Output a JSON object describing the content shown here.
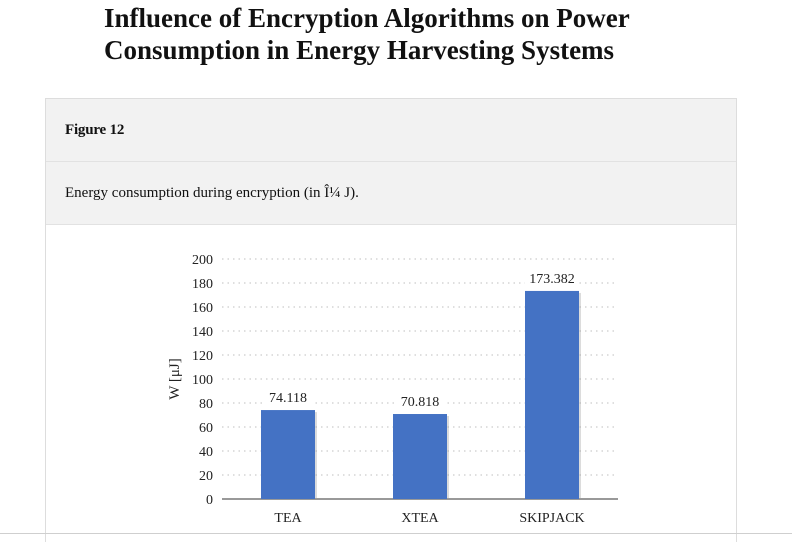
{
  "page": {
    "title": "Influence of Encryption Algorithms on Power Consumption in Energy Harvesting Systems"
  },
  "figure": {
    "label": "Figure 12",
    "caption": "Energy consumption during encryption (in Î¼ J)."
  },
  "colors": {
    "bar": "#4472c4",
    "panel_bg": "#f2f2f2",
    "grid": "#bfbfbf"
  },
  "chart_data": {
    "type": "bar",
    "title": "",
    "xlabel": "",
    "ylabel": "W [μJ]",
    "categories": [
      "TEA",
      "XTEA",
      "SKIPJACK"
    ],
    "values": [
      74.118,
      70.818,
      173.382
    ],
    "value_labels": [
      "74.118",
      "70.818",
      "173.382"
    ],
    "ylim": [
      0,
      200
    ],
    "yticks": [
      0,
      20,
      40,
      60,
      80,
      100,
      120,
      140,
      160,
      180,
      200
    ],
    "grid": "horizontal dotted",
    "legend": "none"
  }
}
